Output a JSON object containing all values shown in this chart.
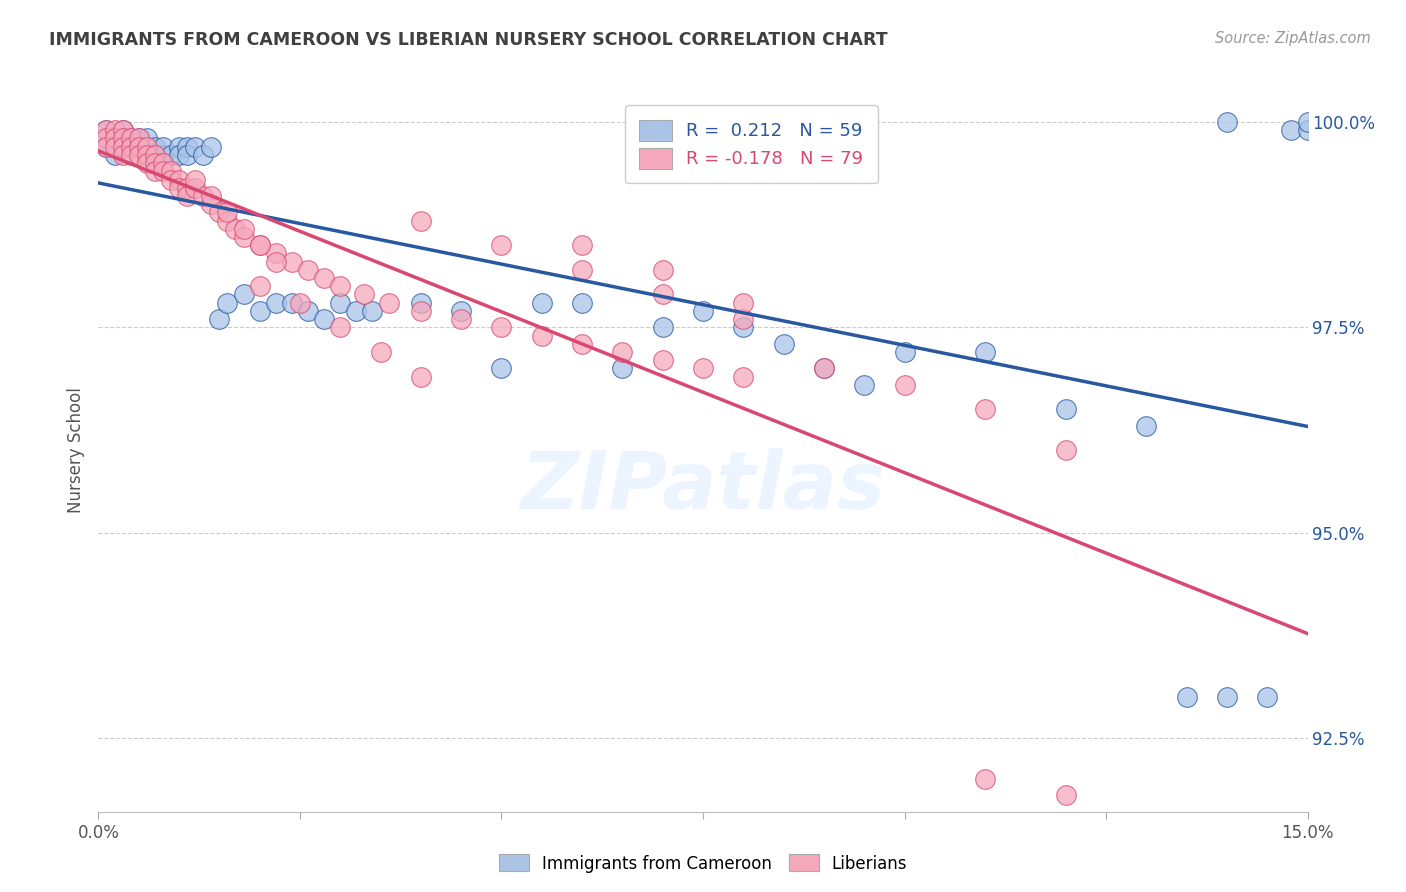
{
  "title": "IMMIGRANTS FROM CAMEROON VS LIBERIAN NURSERY SCHOOL CORRELATION CHART",
  "source": "Source: ZipAtlas.com",
  "ylabel": "Nursery School",
  "xlim": [
    0.0,
    0.15
  ],
  "ylim": [
    0.916,
    1.004
  ],
  "yticks": [
    0.925,
    0.95,
    0.975,
    1.0
  ],
  "ytick_labels": [
    "92.5%",
    "95.0%",
    "97.5%",
    "100.0%"
  ],
  "xticks": [
    0.0,
    0.025,
    0.05,
    0.075,
    0.1,
    0.125,
    0.15
  ],
  "xtick_labels": [
    "0.0%",
    "",
    "",
    "",
    "",
    "",
    "15.0%"
  ],
  "legend_label1": "Immigrants from Cameroon",
  "legend_label2": "Liberians",
  "R1": 0.212,
  "N1": 59,
  "R2": -0.178,
  "N2": 79,
  "color_blue": "#aac4e8",
  "color_pink": "#f5a8bc",
  "line_blue": "#2858a0",
  "line_pink": "#d84870",
  "bg_color": "#ffffff",
  "grid_color": "#cccccc",
  "title_color": "#404040",
  "source_color": "#999999",
  "blue_x": [
    0.001,
    0.001,
    0.002,
    0.002,
    0.003,
    0.003,
    0.003,
    0.004,
    0.004,
    0.005,
    0.005,
    0.006,
    0.006,
    0.007,
    0.007,
    0.008,
    0.008,
    0.009,
    0.01,
    0.01,
    0.011,
    0.011,
    0.012,
    0.013,
    0.014,
    0.015,
    0.016,
    0.018,
    0.02,
    0.022,
    0.024,
    0.026,
    0.028,
    0.03,
    0.032,
    0.034,
    0.04,
    0.045,
    0.05,
    0.055,
    0.06,
    0.065,
    0.07,
    0.075,
    0.08,
    0.085,
    0.09,
    0.095,
    0.1,
    0.11,
    0.12,
    0.13,
    0.135,
    0.14,
    0.145,
    0.148,
    0.15,
    0.14,
    0.15
  ],
  "blue_y": [
    0.999,
    0.997,
    0.998,
    0.996,
    0.997,
    0.999,
    0.998,
    0.997,
    0.998,
    0.998,
    0.997,
    0.997,
    0.998,
    0.996,
    0.997,
    0.996,
    0.997,
    0.996,
    0.997,
    0.996,
    0.997,
    0.996,
    0.997,
    0.996,
    0.997,
    0.976,
    0.978,
    0.979,
    0.977,
    0.978,
    0.978,
    0.977,
    0.976,
    0.978,
    0.977,
    0.977,
    0.978,
    0.977,
    0.97,
    0.978,
    0.978,
    0.97,
    0.975,
    0.977,
    0.975,
    0.973,
    0.97,
    0.968,
    0.972,
    0.972,
    0.965,
    0.963,
    0.93,
    0.93,
    0.93,
    0.999,
    0.999,
    1.0,
    1.0
  ],
  "pink_x": [
    0.001,
    0.001,
    0.001,
    0.002,
    0.002,
    0.002,
    0.003,
    0.003,
    0.003,
    0.003,
    0.004,
    0.004,
    0.004,
    0.005,
    0.005,
    0.005,
    0.006,
    0.006,
    0.006,
    0.007,
    0.007,
    0.007,
    0.008,
    0.008,
    0.009,
    0.009,
    0.01,
    0.01,
    0.011,
    0.011,
    0.012,
    0.013,
    0.014,
    0.015,
    0.016,
    0.017,
    0.018,
    0.02,
    0.022,
    0.024,
    0.026,
    0.028,
    0.03,
    0.033,
    0.036,
    0.04,
    0.045,
    0.05,
    0.055,
    0.06,
    0.065,
    0.07,
    0.075,
    0.08,
    0.04,
    0.05,
    0.06,
    0.07,
    0.08,
    0.09,
    0.1,
    0.11,
    0.12,
    0.02,
    0.025,
    0.03,
    0.035,
    0.04,
    0.012,
    0.014,
    0.016,
    0.018,
    0.02,
    0.022,
    0.06,
    0.07,
    0.08,
    0.11,
    0.12
  ],
  "pink_y": [
    0.999,
    0.998,
    0.997,
    0.999,
    0.998,
    0.997,
    0.999,
    0.998,
    0.997,
    0.996,
    0.998,
    0.997,
    0.996,
    0.998,
    0.997,
    0.996,
    0.997,
    0.996,
    0.995,
    0.996,
    0.995,
    0.994,
    0.995,
    0.994,
    0.994,
    0.993,
    0.993,
    0.992,
    0.992,
    0.991,
    0.992,
    0.991,
    0.99,
    0.989,
    0.988,
    0.987,
    0.986,
    0.985,
    0.984,
    0.983,
    0.982,
    0.981,
    0.98,
    0.979,
    0.978,
    0.977,
    0.976,
    0.975,
    0.974,
    0.973,
    0.972,
    0.971,
    0.97,
    0.969,
    0.988,
    0.985,
    0.982,
    0.979,
    0.976,
    0.97,
    0.968,
    0.965,
    0.96,
    0.98,
    0.978,
    0.975,
    0.972,
    0.969,
    0.993,
    0.991,
    0.989,
    0.987,
    0.985,
    0.983,
    0.985,
    0.982,
    0.978,
    0.92,
    0.918
  ]
}
